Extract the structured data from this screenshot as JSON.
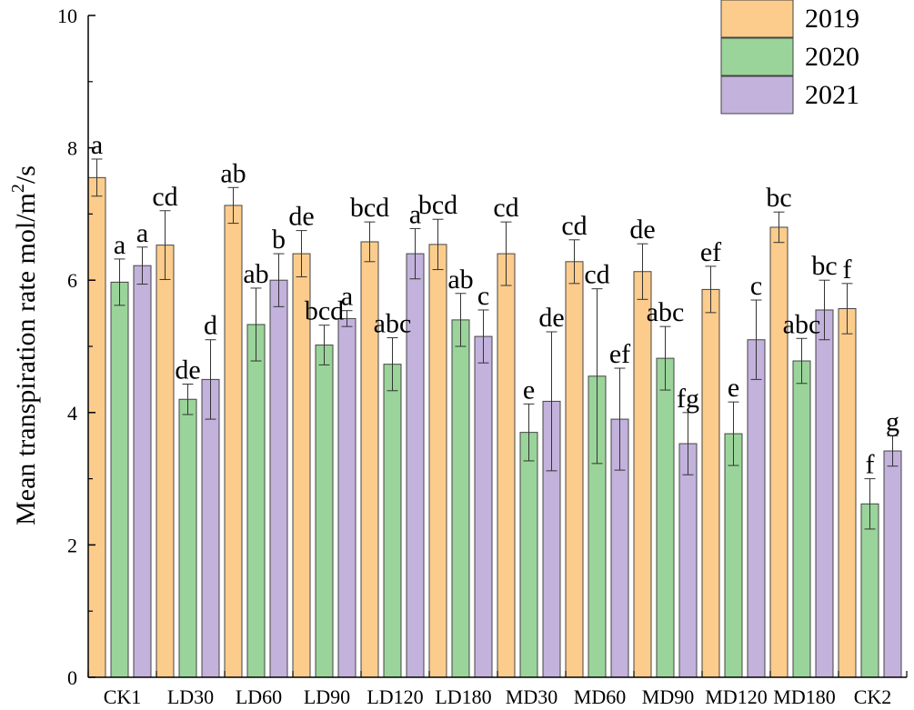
{
  "chart_data": {
    "type": "bar",
    "title": "",
    "xlabel": "",
    "ylabel": "Mean transpiration rate  mol/m",
    "ylabel_sup": "2",
    "ylabel_suffix": "/s",
    "ylim": [
      0,
      10
    ],
    "yticks": [
      "0",
      "2",
      "4",
      "6",
      "8",
      "10"
    ],
    "legend_position": "top-right",
    "categories": [
      "CK1",
      "LD30",
      "LD60",
      "LD90",
      "LD120",
      "LD180",
      "MD30",
      "MD60",
      "MD90",
      "MD120",
      "MD180",
      "CK2"
    ],
    "series": [
      {
        "name": "2019",
        "color": "#FCCC8C",
        "values": [
          7.55,
          6.53,
          7.13,
          6.4,
          6.58,
          6.54,
          6.4,
          6.28,
          6.13,
          5.86,
          6.8,
          5.57
        ],
        "errors": [
          0.28,
          0.52,
          0.27,
          0.35,
          0.3,
          0.38,
          0.48,
          0.33,
          0.42,
          0.35,
          0.23,
          0.38
        ],
        "labels": [
          "a",
          "cd",
          "ab",
          "de",
          "bcd",
          "bcd",
          "cd",
          "cd",
          "de",
          "ef",
          "bc",
          "f"
        ]
      },
      {
        "name": "2020",
        "color": "#9AD49A",
        "values": [
          5.97,
          4.2,
          5.33,
          5.02,
          4.73,
          5.4,
          3.7,
          4.55,
          4.82,
          3.68,
          4.78,
          2.62
        ],
        "errors": [
          0.35,
          0.23,
          0.55,
          0.3,
          0.4,
          0.4,
          0.43,
          1.32,
          0.48,
          0.48,
          0.34,
          0.38
        ],
        "labels": [
          "a",
          "de",
          "ab",
          "bcd",
          "abc",
          "ab",
          "e",
          "cd",
          "abc",
          "e",
          "abc",
          "f"
        ]
      },
      {
        "name": "2021",
        "color": "#C2B2DC",
        "values": [
          6.22,
          4.5,
          6.0,
          5.42,
          6.4,
          5.15,
          4.17,
          3.9,
          3.53,
          5.1,
          5.55,
          3.42
        ],
        "errors": [
          0.28,
          0.6,
          0.4,
          0.12,
          0.38,
          0.4,
          1.05,
          0.77,
          0.47,
          0.6,
          0.45,
          0.23
        ],
        "labels": [
          "a",
          "d",
          "b",
          "a",
          "a",
          "c",
          "de",
          "ef",
          "fg",
          "c",
          "bc",
          "g"
        ]
      }
    ]
  }
}
